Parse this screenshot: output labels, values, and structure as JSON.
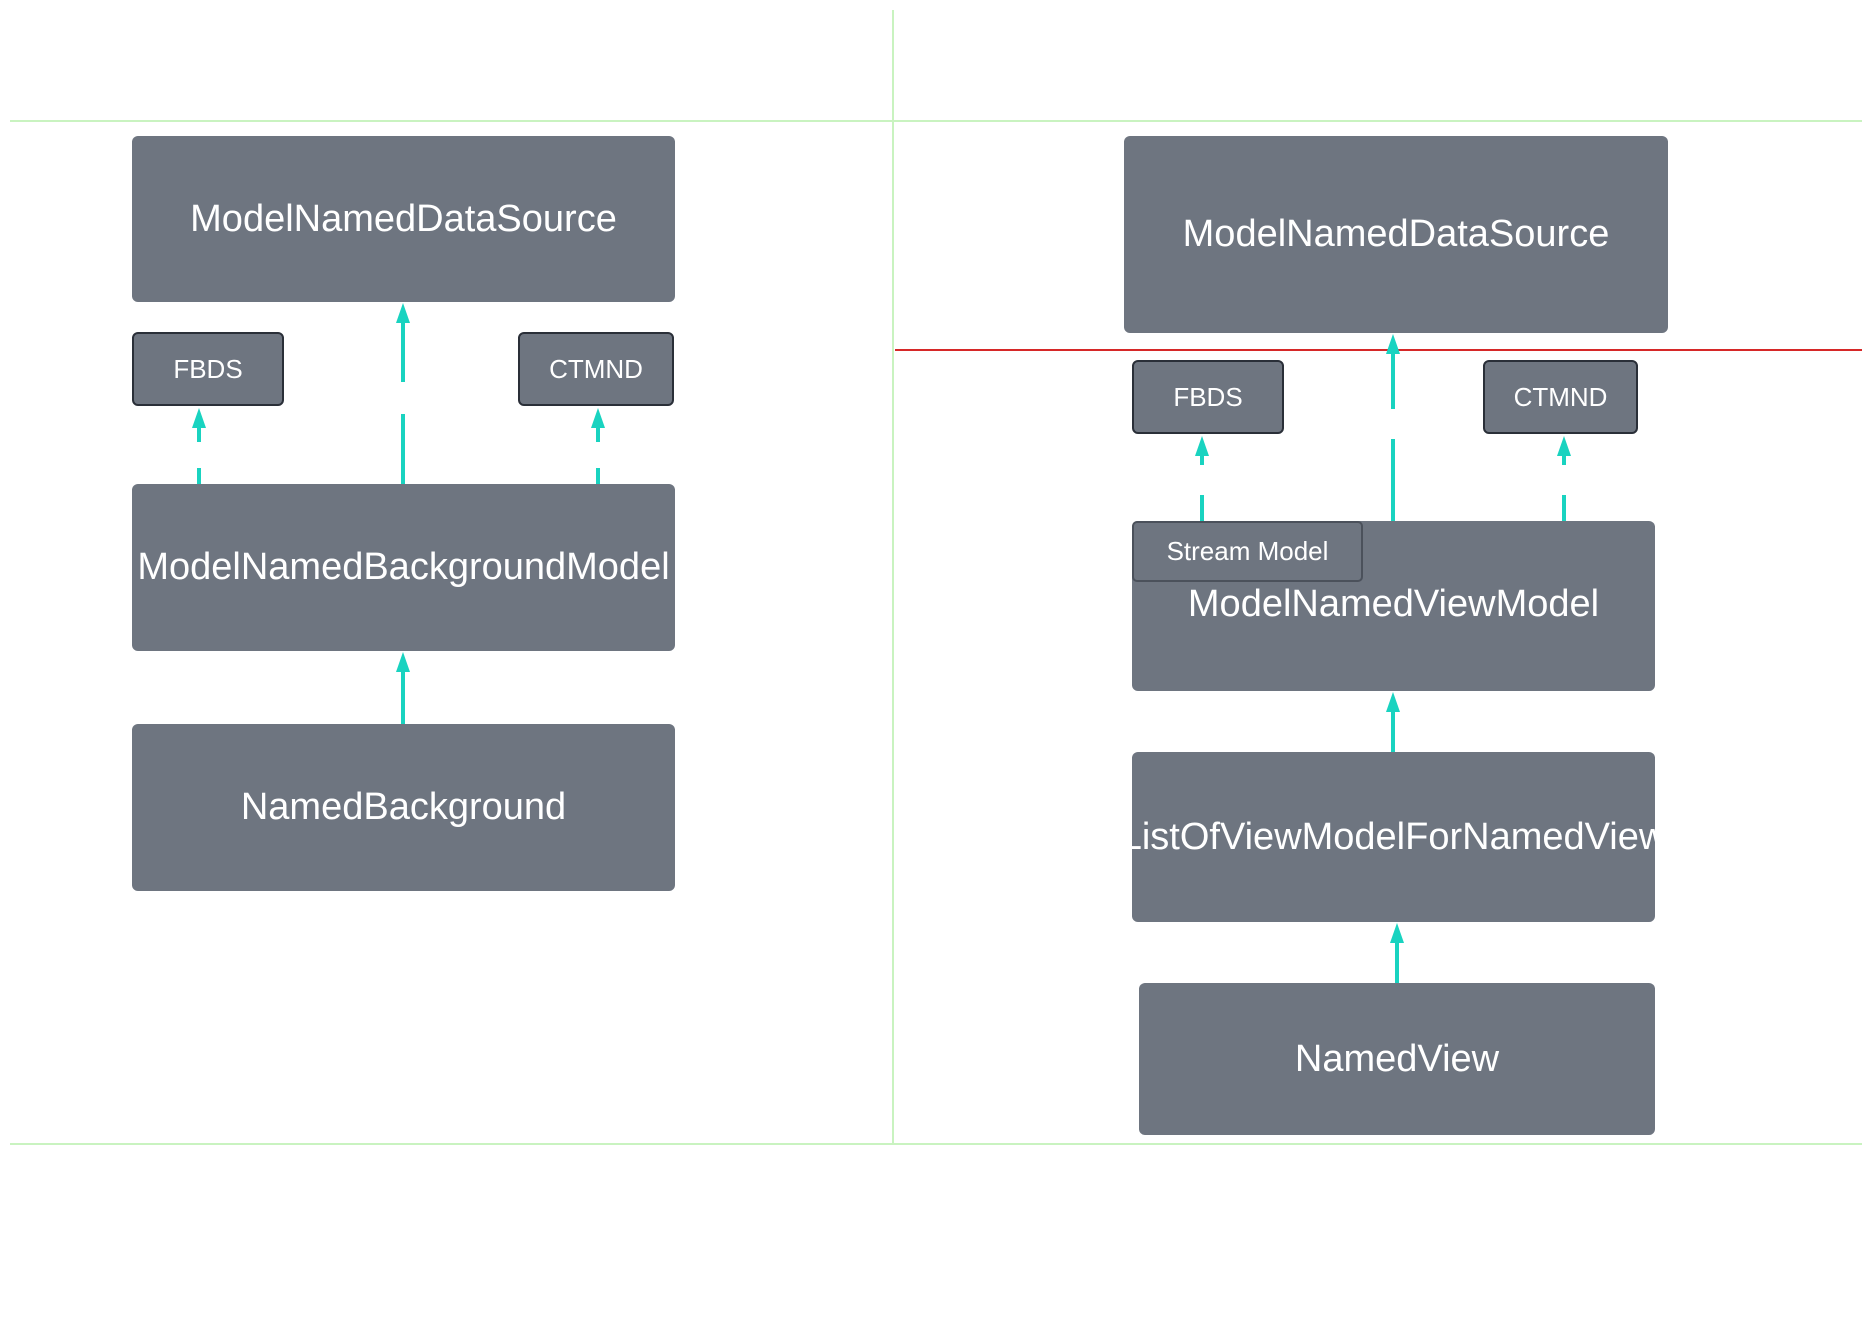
{
  "colors": {
    "node_fill": "#6e7580",
    "node_text": "#ffffff",
    "arrow": "#19d3c0",
    "grid_line": "#c9f3c0",
    "boundary_line": "#d62828"
  },
  "left": {
    "data_source": "ModelNamedDataSource",
    "fbds": "FBDS",
    "ctmnd": "CTMND",
    "background_model": "ModelNamedBackgroundModel",
    "background": "NamedBackground"
  },
  "right": {
    "data_source": "ModelNamedDataSource",
    "fbds": "FBDS",
    "ctmnd": "CTMND",
    "stream_model": "Stream Model",
    "view_model": "ModelNamedViewModel",
    "list_view_model": "ListOfViewModelForNamedView",
    "view": "NamedView"
  }
}
